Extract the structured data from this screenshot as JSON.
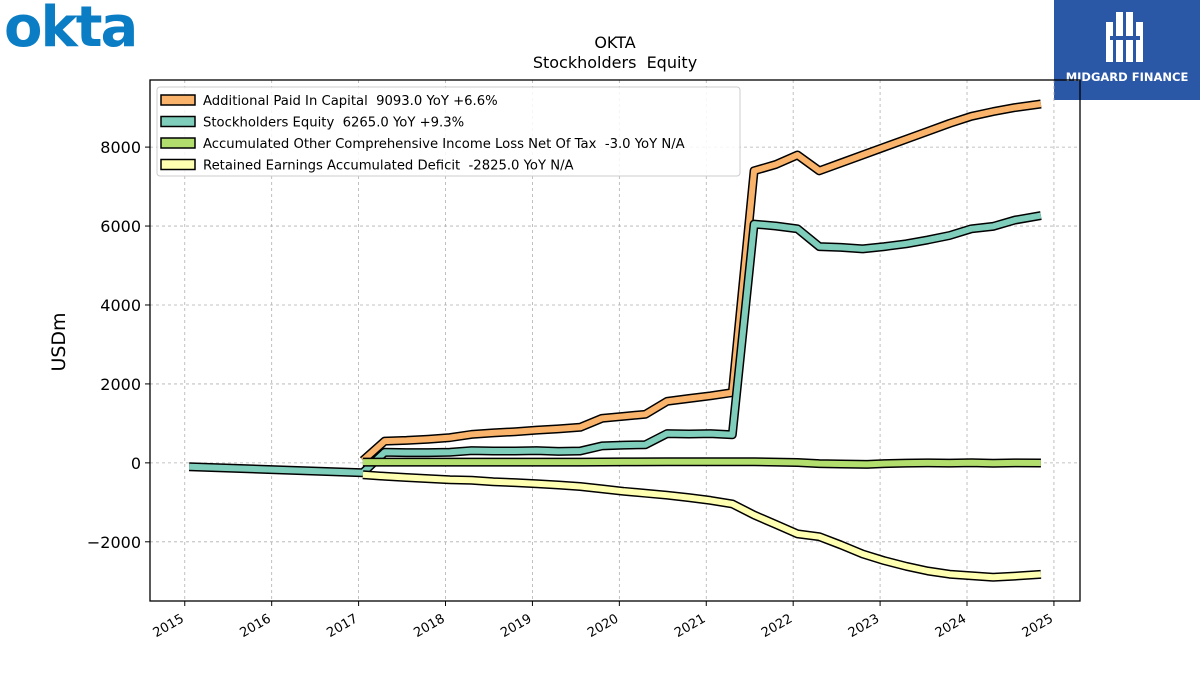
{
  "branding": {
    "left_logo_text": "okta",
    "right_logo_text": "MIDGARD FINANCE",
    "left_logo_color": "#0b7dc5",
    "right_logo_bg": "#2b57a7"
  },
  "chart_data": {
    "type": "line",
    "title": "OKTA",
    "subtitle": "Stockholders  Equity",
    "ylabel": "USDm",
    "xlabel": "",
    "xlim": [
      2014.6,
      2025.3
    ],
    "ylim": [
      -3500,
      9700
    ],
    "grid": true,
    "legend_position": "top-left",
    "x_ticks": [
      "2015",
      "2016",
      "2017",
      "2018",
      "2019",
      "2020",
      "2021",
      "2022",
      "2023",
      "2024",
      "2025"
    ],
    "y_ticks": [
      -2000,
      0,
      2000,
      4000,
      6000,
      8000
    ],
    "y_tick_labels": [
      "−2000",
      "0",
      "2000",
      "4000",
      "6000",
      "8000"
    ],
    "series": [
      {
        "name": "Additional Paid In Capital  9093.0 YoY +6.6%",
        "color": "#f9b36b",
        "points": [
          [
            2017.05,
            60
          ],
          [
            2017.3,
            550
          ],
          [
            2017.55,
            570
          ],
          [
            2017.8,
            600
          ],
          [
            2018.05,
            640
          ],
          [
            2018.3,
            720
          ],
          [
            2018.55,
            760
          ],
          [
            2018.8,
            790
          ],
          [
            2019.05,
            830
          ],
          [
            2019.3,
            860
          ],
          [
            2019.55,
            900
          ],
          [
            2019.8,
            1130
          ],
          [
            2020.05,
            1180
          ],
          [
            2020.3,
            1230
          ],
          [
            2020.55,
            1560
          ],
          [
            2020.8,
            1630
          ],
          [
            2021.05,
            1700
          ],
          [
            2021.3,
            1780
          ],
          [
            2021.55,
            7400
          ],
          [
            2021.8,
            7560
          ],
          [
            2022.05,
            7800
          ],
          [
            2022.3,
            7400
          ],
          [
            2022.55,
            7600
          ],
          [
            2022.8,
            7800
          ],
          [
            2023.05,
            8000
          ],
          [
            2023.3,
            8200
          ],
          [
            2023.55,
            8400
          ],
          [
            2023.8,
            8600
          ],
          [
            2024.05,
            8780
          ],
          [
            2024.3,
            8900
          ],
          [
            2024.55,
            9000
          ],
          [
            2024.85,
            9093
          ]
        ]
      },
      {
        "name": "Stockholders Equity  6265.0 YoY +9.3%",
        "color": "#7fcdbb",
        "points": [
          [
            2015.05,
            -100
          ],
          [
            2016.0,
            -170
          ],
          [
            2017.05,
            -250
          ],
          [
            2017.3,
            270
          ],
          [
            2017.55,
            260
          ],
          [
            2017.8,
            260
          ],
          [
            2018.05,
            270
          ],
          [
            2018.3,
            310
          ],
          [
            2018.55,
            300
          ],
          [
            2018.8,
            300
          ],
          [
            2019.05,
            310
          ],
          [
            2019.3,
            290
          ],
          [
            2019.55,
            300
          ],
          [
            2019.8,
            430
          ],
          [
            2020.05,
            450
          ],
          [
            2020.3,
            460
          ],
          [
            2020.55,
            740
          ],
          [
            2020.8,
            730
          ],
          [
            2021.05,
            740
          ],
          [
            2021.3,
            710
          ],
          [
            2021.55,
            6050
          ],
          [
            2021.8,
            6000
          ],
          [
            2022.05,
            5930
          ],
          [
            2022.3,
            5480
          ],
          [
            2022.55,
            5460
          ],
          [
            2022.8,
            5420
          ],
          [
            2023.05,
            5480
          ],
          [
            2023.3,
            5550
          ],
          [
            2023.55,
            5650
          ],
          [
            2023.8,
            5760
          ],
          [
            2024.05,
            5930
          ],
          [
            2024.3,
            5990
          ],
          [
            2024.55,
            6150
          ],
          [
            2024.85,
            6265
          ]
        ]
      },
      {
        "name": "Accumulated Other Comprehensive Income Loss Net Of Tax  -3.0 YoY N/A",
        "color": "#b2de6e",
        "points": [
          [
            2017.05,
            20
          ],
          [
            2017.55,
            20
          ],
          [
            2018.05,
            20
          ],
          [
            2018.55,
            20
          ],
          [
            2019.05,
            20
          ],
          [
            2019.55,
            20
          ],
          [
            2020.05,
            25
          ],
          [
            2020.55,
            30
          ],
          [
            2021.05,
            30
          ],
          [
            2021.55,
            30
          ],
          [
            2022.05,
            10
          ],
          [
            2022.3,
            -20
          ],
          [
            2022.55,
            -30
          ],
          [
            2022.85,
            -40
          ],
          [
            2023.05,
            -20
          ],
          [
            2023.3,
            -5
          ],
          [
            2023.55,
            0
          ],
          [
            2023.8,
            -5
          ],
          [
            2024.05,
            5
          ],
          [
            2024.3,
            -10
          ],
          [
            2024.55,
            0
          ],
          [
            2024.85,
            -3
          ]
        ]
      },
      {
        "name": "Retained Earnings Accumulated Deficit  -2825.0 YoY N/A",
        "color": "#ffffb2",
        "points": [
          [
            2017.05,
            -300
          ],
          [
            2017.3,
            -340
          ],
          [
            2017.55,
            -370
          ],
          [
            2017.8,
            -400
          ],
          [
            2018.05,
            -430
          ],
          [
            2018.3,
            -440
          ],
          [
            2018.55,
            -480
          ],
          [
            2018.8,
            -500
          ],
          [
            2019.05,
            -530
          ],
          [
            2019.3,
            -560
          ],
          [
            2019.55,
            -600
          ],
          [
            2019.8,
            -660
          ],
          [
            2020.05,
            -720
          ],
          [
            2020.3,
            -770
          ],
          [
            2020.55,
            -820
          ],
          [
            2020.8,
            -880
          ],
          [
            2021.05,
            -950
          ],
          [
            2021.3,
            -1040
          ],
          [
            2021.55,
            -1320
          ],
          [
            2021.8,
            -1560
          ],
          [
            2022.05,
            -1800
          ],
          [
            2022.3,
            -1870
          ],
          [
            2022.55,
            -2080
          ],
          [
            2022.8,
            -2310
          ],
          [
            2023.05,
            -2480
          ],
          [
            2023.3,
            -2620
          ],
          [
            2023.55,
            -2740
          ],
          [
            2023.8,
            -2820
          ],
          [
            2024.05,
            -2860
          ],
          [
            2024.3,
            -2900
          ],
          [
            2024.55,
            -2870
          ],
          [
            2024.85,
            -2825
          ]
        ]
      }
    ]
  }
}
